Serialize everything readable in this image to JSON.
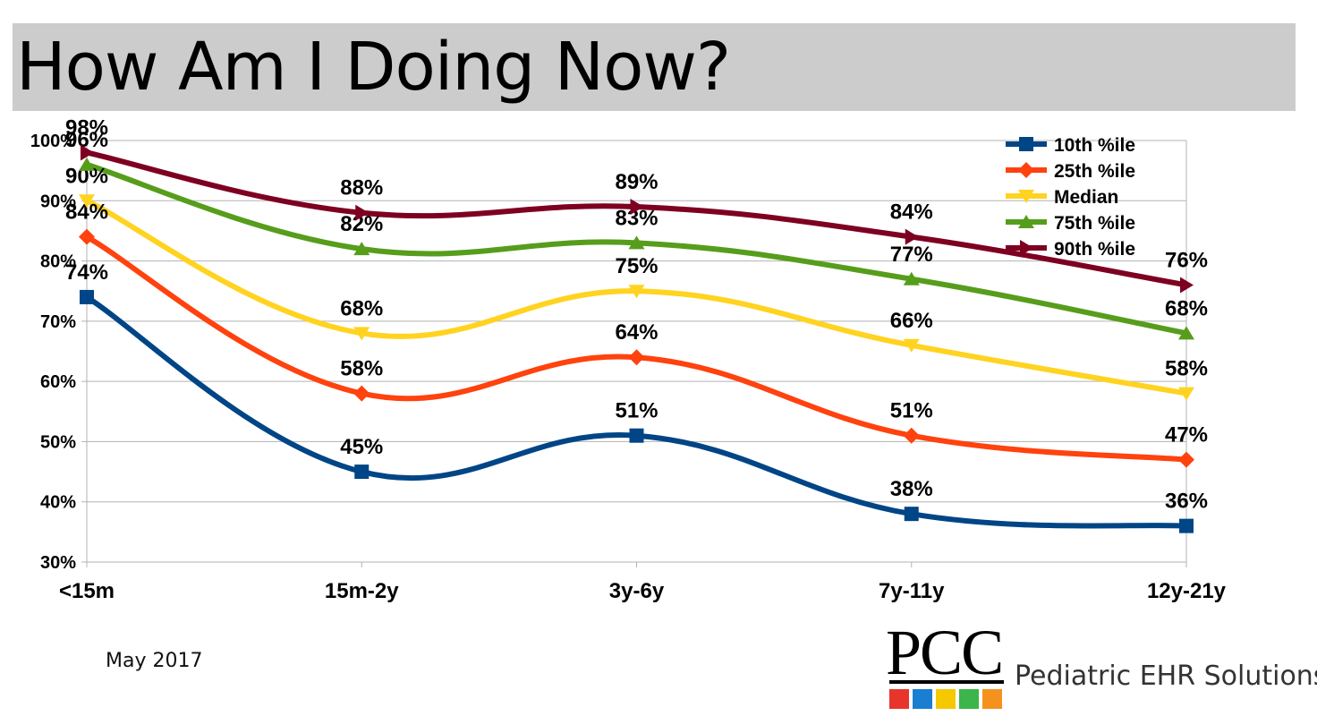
{
  "slide": {
    "title": "How Am I Doing Now?",
    "footer_date": "May 2017"
  },
  "logo": {
    "mark": "PCC",
    "tagline": "Pediatric EHR Solutions",
    "square_colors": [
      "#e8352b",
      "#1a7fd0",
      "#f5c800",
      "#3cb54a",
      "#f5921e"
    ]
  },
  "chart_data": {
    "type": "line",
    "categories": [
      "<15m",
      "15m-2y",
      "3y-6y",
      "7y-11y",
      "12y-21y"
    ],
    "ylim": [
      30,
      100
    ],
    "y_ticks": [
      "30%",
      "40%",
      "50%",
      "60%",
      "70%",
      "80%",
      "90%",
      "100%"
    ],
    "grid": true,
    "legend_position": "top-right",
    "smooth": true,
    "series": [
      {
        "name": "10th %ile",
        "color": "#004586",
        "marker": "square",
        "values": [
          74,
          45,
          51,
          38,
          36
        ],
        "labels": [
          "74%",
          "45%",
          "51%",
          "38%",
          "36%"
        ]
      },
      {
        "name": "25th %ile",
        "color": "#ff420e",
        "marker": "diamond",
        "values": [
          84,
          58,
          64,
          51,
          47
        ],
        "labels": [
          "84%",
          "58%",
          "64%",
          "51%",
          "47%"
        ]
      },
      {
        "name": "Median",
        "color": "#ffd320",
        "marker": "triangle-down",
        "values": [
          90,
          68,
          75,
          66,
          58
        ],
        "labels": [
          "90%",
          "68%",
          "75%",
          "66%",
          "58%"
        ]
      },
      {
        "name": "75th %ile",
        "color": "#579d1c",
        "marker": "triangle-up",
        "values": [
          96,
          82,
          83,
          77,
          68
        ],
        "labels": [
          "96%",
          "82%",
          "83%",
          "77%",
          "68%"
        ]
      },
      {
        "name": "90th %ile",
        "color": "#7e0021",
        "marker": "triangle-right",
        "values": [
          98,
          88,
          89,
          84,
          76
        ],
        "labels": [
          "98%",
          "88%",
          "89%",
          "84%",
          "76%"
        ]
      }
    ]
  }
}
